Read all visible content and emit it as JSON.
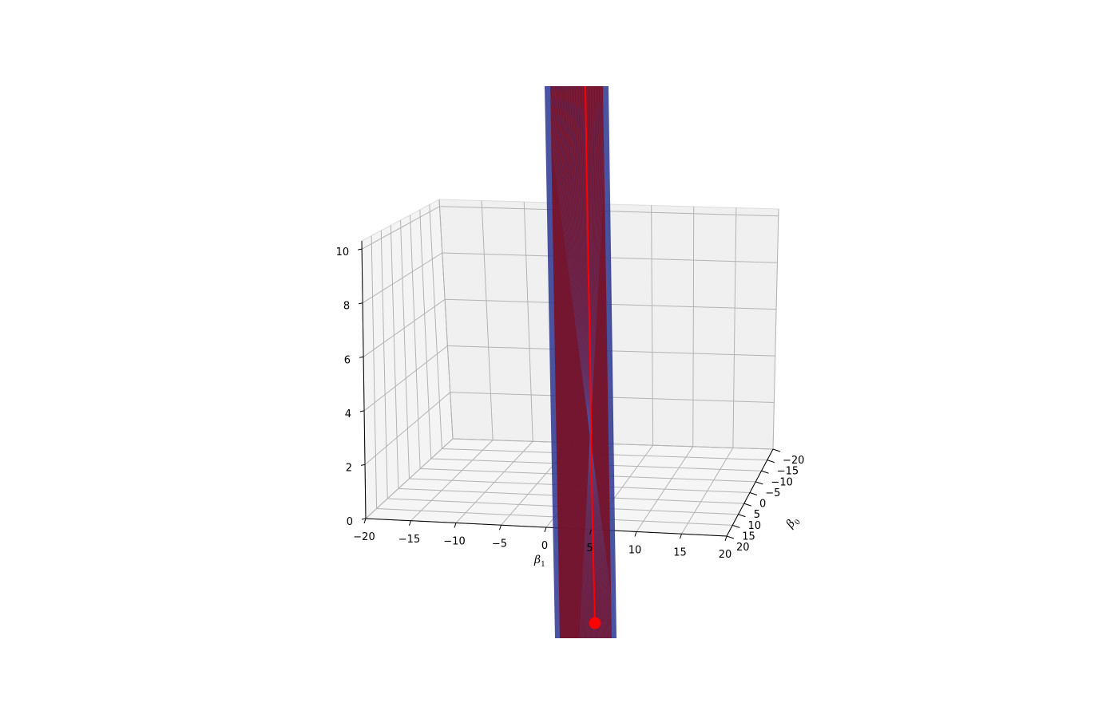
{
  "chart_data": {
    "type": "surface-3d",
    "title": "",
    "x_axis": {
      "label": "β",
      "subscript": "1",
      "ticks": [
        "−20",
        "−15",
        "−10",
        "−5",
        "0",
        "5",
        "10",
        "15",
        "20"
      ],
      "range": [
        -20,
        20
      ]
    },
    "y_axis": {
      "label": "β",
      "subscript": "0",
      "ticks": [
        "−20",
        "−15",
        "−10",
        "−5",
        "0",
        "5",
        "10",
        "15",
        "20"
      ],
      "range": [
        -20,
        20
      ]
    },
    "z_axis": {
      "label": "",
      "ticks": [
        "0",
        "2",
        "4",
        "6",
        "8",
        "10"
      ],
      "range": [
        0,
        10
      ]
    },
    "grid": true,
    "series": [
      {
        "kind": "surface",
        "color": "#1f2a8c",
        "overlay_color": "#8b0f1e",
        "x_center": 4,
        "x_halfwidth": 3
      },
      {
        "kind": "path",
        "color": "#ff0000",
        "end_marker": "dot"
      }
    ],
    "colors": {
      "pane": "#f2f2f2",
      "grid": "#b0b0b0",
      "surface": "#2b3691",
      "surface_inner": "#7a1024",
      "path": "#ff0000"
    }
  }
}
